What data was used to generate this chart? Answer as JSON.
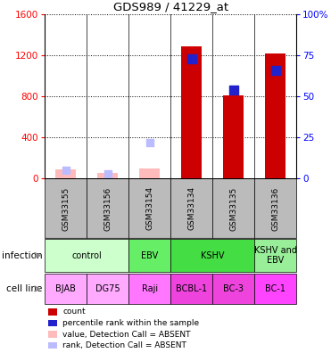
{
  "title": "GDS989 / 41229_at",
  "samples": [
    "GSM33155",
    "GSM33156",
    "GSM33154",
    "GSM33134",
    "GSM33135",
    "GSM33136"
  ],
  "count_values": [
    60,
    0,
    0,
    1290,
    810,
    1220
  ],
  "rank_values_pct": [
    0,
    0,
    0,
    73,
    54,
    66
  ],
  "absent_count_values": [
    90,
    60,
    100,
    0,
    0,
    0
  ],
  "absent_rank_values_pct": [
    5,
    3,
    22,
    0,
    0,
    0
  ],
  "count_color": "#cc0000",
  "rank_color": "#2222cc",
  "absent_count_color": "#ffbbbb",
  "absent_rank_color": "#bbbbff",
  "ylim_left": [
    0,
    1600
  ],
  "ylim_right": [
    0,
    100
  ],
  "yticks_left": [
    0,
    400,
    800,
    1200,
    1600
  ],
  "ytick_labels_right": [
    "0",
    "25",
    "50",
    "75",
    "100%"
  ],
  "yticks_right": [
    0,
    25,
    50,
    75,
    100
  ],
  "infection_groups": [
    {
      "label": "control",
      "cols": [
        0,
        1
      ],
      "color": "#ccffcc"
    },
    {
      "label": "EBV",
      "cols": [
        2,
        2
      ],
      "color": "#66ee66"
    },
    {
      "label": "KSHV",
      "cols": [
        3,
        4
      ],
      "color": "#44dd44"
    },
    {
      "label": "KSHV and\nEBV",
      "cols": [
        5,
        5
      ],
      "color": "#99ee99"
    }
  ],
  "cell_line_groups": [
    {
      "label": "BJAB",
      "cols": [
        0,
        0
      ],
      "color": "#ffaaff"
    },
    {
      "label": "DG75",
      "cols": [
        1,
        1
      ],
      "color": "#ffaaff"
    },
    {
      "label": "Raji",
      "cols": [
        2,
        2
      ],
      "color": "#ff77ff"
    },
    {
      "label": "BCBL-1",
      "cols": [
        3,
        3
      ],
      "color": "#ee44dd"
    },
    {
      "label": "BC-3",
      "cols": [
        4,
        4
      ],
      "color": "#ee44dd"
    },
    {
      "label": "BC-1",
      "cols": [
        5,
        5
      ],
      "color": "#ff44ff"
    }
  ],
  "legend_items": [
    {
      "color": "#cc0000",
      "label": "count"
    },
    {
      "color": "#2222cc",
      "label": "percentile rank within the sample"
    },
    {
      "color": "#ffbbbb",
      "label": "value, Detection Call = ABSENT"
    },
    {
      "color": "#bbbbff",
      "label": "rank, Detection Call = ABSENT"
    }
  ],
  "bar_width": 0.5,
  "rank_marker_size": 55,
  "absent_marker_size": 40,
  "sample_header_color": "#bbbbbb",
  "left_label_color": "#888888"
}
